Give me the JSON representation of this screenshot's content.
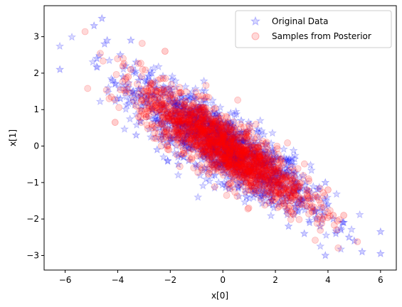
{
  "chart_data": {
    "type": "scatter",
    "xlabel": "x[0]",
    "ylabel": "x[1]",
    "xlim": [
      -6.8,
      6.6
    ],
    "ylim": [
      -3.4,
      3.85
    ],
    "xticks": [
      -6,
      -4,
      -2,
      0,
      2,
      4,
      6
    ],
    "yticks": [
      -3,
      -2,
      -1,
      0,
      1,
      2,
      3
    ],
    "xtick_labels": [
      "−6",
      "−4",
      "−2",
      "0",
      "2",
      "4",
      "6"
    ],
    "ytick_labels": [
      "−3",
      "−2",
      "−1",
      "0",
      "1",
      "2",
      "3"
    ],
    "grid": false,
    "legend_position": "top-right",
    "series": [
      {
        "name": "Original Data",
        "marker": "star",
        "color": "#0000ff",
        "alpha": 0.15,
        "x": [
          -6.2,
          -4.6,
          -4.8,
          -4.5,
          -4.4,
          -4.9,
          -3.9,
          -3.7,
          -3.5,
          -3.3,
          -3.8,
          -4.1,
          -3.6,
          -3.2,
          -3.0,
          -2.8,
          -3.4,
          -2.9,
          -2.7,
          -2.5,
          -3.1,
          -2.6,
          -2.4,
          -2.2,
          -2.0,
          -1.8,
          -2.3,
          -1.9,
          -1.6,
          -1.4,
          -1.2,
          -1.0,
          -0.8,
          -0.6,
          -0.4,
          -0.2,
          0.0,
          0.2,
          0.4,
          0.6,
          0.8,
          1.0,
          1.2,
          1.4,
          1.6,
          1.8,
          2.0,
          2.2,
          2.4,
          2.6,
          2.8,
          3.0,
          3.2,
          3.4,
          3.6,
          3.8,
          4.0,
          4.2,
          4.5,
          4.8,
          5.0,
          5.3,
          6.0,
          6.0,
          3.9,
          4.3,
          3.7,
          3.5,
          -1.5,
          -0.5,
          0.5,
          1.5,
          -2.1,
          2.1,
          -1.1,
          1.1,
          -3.3,
          3.3,
          -0.3,
          0.3,
          -1.7,
          1.7,
          -2.7,
          2.7,
          -0.9,
          0.9,
          -2.5,
          2.5,
          -1.3,
          1.3,
          -3.9,
          3.9,
          -0.7,
          0.7,
          -1.9,
          1.9,
          4.6,
          -4.2,
          3.1,
          -3.1
        ],
        "y": [
          2.1,
          3.5,
          2.4,
          2.8,
          2.9,
          3.3,
          2.5,
          2.2,
          2.9,
          2.3,
          1.9,
          1.7,
          1.6,
          1.8,
          1.2,
          1.9,
          1.5,
          1.3,
          1.0,
          0.9,
          1.1,
          1.4,
          0.7,
          0.5,
          1.2,
          0.6,
          0.3,
          0.8,
          0.4,
          0.1,
          0.5,
          0.2,
          -0.1,
          0.3,
          0.0,
          -0.2,
          0.1,
          -0.3,
          0.0,
          -0.4,
          -0.2,
          -0.6,
          -0.3,
          -0.8,
          -0.5,
          -0.9,
          -0.7,
          -1.1,
          -0.8,
          -1.3,
          -1.0,
          -1.5,
          -1.2,
          -1.7,
          -1.4,
          -1.9,
          -1.6,
          -2.0,
          -2.3,
          -2.5,
          -2.6,
          -2.9,
          -2.35,
          -2.95,
          -3.0,
          -2.4,
          -2.2,
          -1.8,
          1.0,
          0.6,
          -0.3,
          -1.0,
          -0.4,
          -1.6,
          0.2,
          -1.2,
          0.3,
          -2.1,
          -0.8,
          0.9,
          -0.5,
          -0.2,
          2.0,
          -0.9,
          1.1,
          -1.4,
          -0.1,
          -2.2,
          -0.4,
          0.4,
          1.3,
          -1.0,
          -0.6,
          0.7,
          1.3,
          -1.4,
          -2.1,
          1.8,
          -2.4,
          1.4
        ]
      },
      {
        "name": "Samples from Posterior",
        "marker": "circle",
        "color": "#ff0000",
        "alpha": 0.15,
        "x": [
          -4.1,
          -3.8,
          -3.5,
          -3.3,
          -3.0,
          -2.8,
          -2.6,
          -2.4,
          -2.2,
          -2.0,
          -1.8,
          -1.6,
          -1.4,
          -1.2,
          -1.0,
          -0.8,
          -0.6,
          -0.4,
          -0.2,
          0.0,
          0.2,
          0.4,
          0.6,
          0.8,
          1.0,
          1.2,
          1.4,
          1.6,
          1.8,
          2.0,
          2.2,
          2.4,
          2.6,
          2.8,
          3.0,
          3.2,
          3.4,
          3.6,
          3.8,
          4.0,
          4.2,
          4.6,
          -2.3,
          -1.7,
          -1.1,
          -0.5,
          0.5,
          1.1,
          1.7,
          2.3,
          -2.9,
          2.9,
          -1.4,
          1.4,
          -0.7,
          0.7,
          -2.1,
          2.1,
          -3.2,
          3.2,
          -1.9,
          1.9,
          -0.3,
          0.3,
          -1.5,
          1.5,
          -2.5,
          2.5,
          -0.9,
          0.9,
          -1.3,
          1.3,
          -2.7,
          2.7,
          -0.1,
          0.1,
          -3.6,
          3.6,
          -1.0,
          1.0
        ],
        "y": [
          0.65,
          2.2,
          2.1,
          1.1,
          1.5,
          1.6,
          1.3,
          1.0,
          2.6,
          1.2,
          0.6,
          0.9,
          0.4,
          1.1,
          0.3,
          0.7,
          0.0,
          0.4,
          -0.2,
          0.2,
          -0.4,
          0.1,
          -0.5,
          -0.1,
          -0.7,
          -0.3,
          -0.9,
          -0.5,
          -1.1,
          -0.7,
          -1.3,
          -0.8,
          -1.5,
          -1.0,
          -1.6,
          -1.2,
          -1.8,
          -1.4,
          -2.0,
          -1.2,
          -1.9,
          -1.9,
          0.6,
          0.3,
          0.8,
          -0.1,
          0.0,
          -0.8,
          -0.3,
          -1.2,
          1.2,
          -1.6,
          1.0,
          -0.6,
          0.5,
          -0.2,
          0.0,
          -1.0,
          0.8,
          -1.3,
          1.4,
          -1.5,
          0.2,
          -0.6,
          -0.2,
          -0.4,
          1.5,
          -1.7,
          0.9,
          -1.0,
          0.5,
          -0.9,
          0.6,
          -1.1,
          0.1,
          -0.5,
          1.9,
          -2.0,
          0.3,
          -0.7
        ]
      }
    ]
  }
}
